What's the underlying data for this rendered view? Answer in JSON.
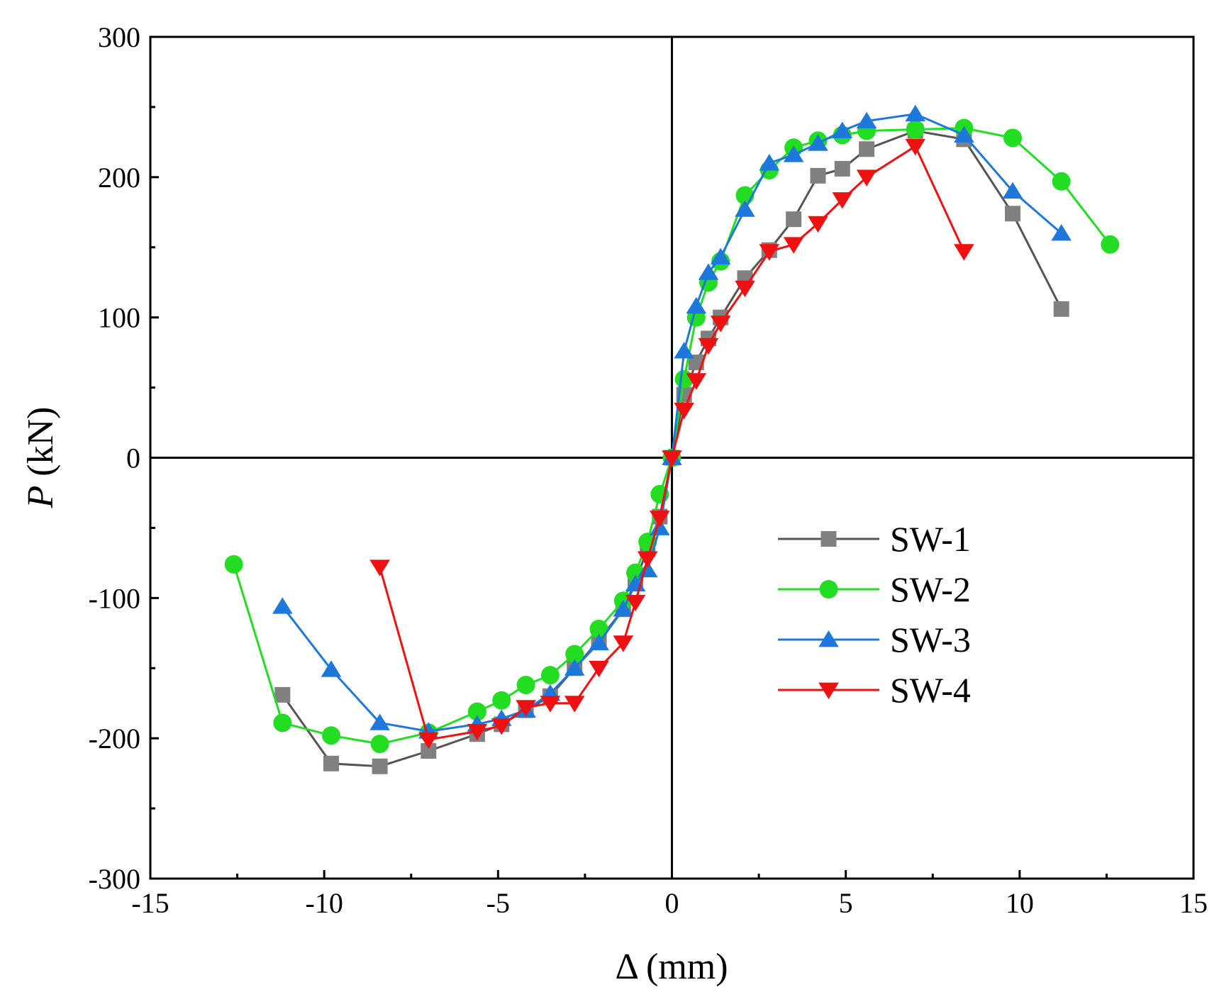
{
  "chart_data": {
    "type": "line",
    "title": "",
    "xlabel": "Δ (mm)",
    "ylabel_italic": "P",
    "ylabel_unit": " (kN)",
    "xlim": [
      -15,
      15
    ],
    "ylim": [
      -300,
      300
    ],
    "x_ticks": [
      -15,
      -10,
      -5,
      0,
      5,
      10,
      15
    ],
    "y_ticks": [
      -300,
      -200,
      -100,
      0,
      100,
      200,
      300
    ],
    "x_tick_labels": [
      "-15",
      "-10",
      "-5",
      "0",
      "5",
      "10",
      "15"
    ],
    "y_tick_labels": [
      "-300",
      "-200",
      "-100",
      "0",
      "100",
      "200",
      "300"
    ],
    "grid": false,
    "zero_lines": true,
    "legend_position": "right-center",
    "series": [
      {
        "name": "SW-1",
        "color": "#808080",
        "line_color": "#555555",
        "marker": "square",
        "points": [
          [
            -11.2,
            -169
          ],
          [
            -9.8,
            -218
          ],
          [
            -8.4,
            -220
          ],
          [
            -7.0,
            -209
          ],
          [
            -5.6,
            -197
          ],
          [
            -4.9,
            -190
          ],
          [
            -4.2,
            -180
          ],
          [
            -3.5,
            -170
          ],
          [
            -2.8,
            -150
          ],
          [
            -2.1,
            -130
          ],
          [
            -1.4,
            -108
          ],
          [
            -1.05,
            -88
          ],
          [
            -0.7,
            -65
          ],
          [
            -0.35,
            -42
          ],
          [
            0,
            0
          ],
          [
            0.35,
            45
          ],
          [
            0.7,
            68
          ],
          [
            1.05,
            85
          ],
          [
            1.4,
            100
          ],
          [
            2.1,
            128
          ],
          [
            2.8,
            148
          ],
          [
            3.5,
            170
          ],
          [
            4.2,
            201
          ],
          [
            4.9,
            206
          ],
          [
            5.6,
            220
          ],
          [
            7.0,
            233
          ],
          [
            8.4,
            227
          ],
          [
            9.8,
            174
          ],
          [
            11.2,
            106
          ]
        ]
      },
      {
        "name": "SW-2",
        "color": "#22DD22",
        "line_color": "#22DD22",
        "marker": "circle",
        "points": [
          [
            -12.6,
            -76
          ],
          [
            -11.2,
            -189
          ],
          [
            -9.8,
            -198
          ],
          [
            -8.4,
            -204
          ],
          [
            -7.0,
            -196
          ],
          [
            -5.6,
            -181
          ],
          [
            -4.9,
            -173
          ],
          [
            -4.2,
            -162
          ],
          [
            -3.5,
            -155
          ],
          [
            -2.8,
            -140
          ],
          [
            -2.1,
            -122
          ],
          [
            -1.4,
            -102
          ],
          [
            -1.05,
            -82
          ],
          [
            -0.7,
            -60
          ],
          [
            -0.35,
            -26
          ],
          [
            0,
            0
          ],
          [
            0.35,
            56
          ],
          [
            0.7,
            100
          ],
          [
            1.05,
            125
          ],
          [
            1.4,
            140
          ],
          [
            2.1,
            187
          ],
          [
            2.8,
            205
          ],
          [
            3.5,
            221
          ],
          [
            4.2,
            226
          ],
          [
            4.9,
            230
          ],
          [
            5.6,
            233
          ],
          [
            7.0,
            234
          ],
          [
            8.4,
            235
          ],
          [
            9.8,
            228
          ],
          [
            11.2,
            197
          ],
          [
            12.6,
            152
          ]
        ]
      },
      {
        "name": "SW-3",
        "color": "#1E78DC",
        "line_color": "#1E78DC",
        "marker": "triangle-up",
        "points": [
          [
            -11.2,
            -106
          ],
          [
            -9.8,
            -151
          ],
          [
            -8.4,
            -189
          ],
          [
            -7.0,
            -195
          ],
          [
            -5.6,
            -190
          ],
          [
            -4.9,
            -186
          ],
          [
            -4.2,
            -180
          ],
          [
            -3.5,
            -168
          ],
          [
            -2.8,
            -150
          ],
          [
            -2.1,
            -132
          ],
          [
            -1.4,
            -108
          ],
          [
            -1.05,
            -90
          ],
          [
            -0.7,
            -80
          ],
          [
            -0.35,
            -50
          ],
          [
            0,
            0
          ],
          [
            0.35,
            76
          ],
          [
            0.7,
            108
          ],
          [
            1.05,
            132
          ],
          [
            1.4,
            143
          ],
          [
            2.1,
            177
          ],
          [
            2.8,
            210
          ],
          [
            3.5,
            216
          ],
          [
            4.2,
            224
          ],
          [
            4.9,
            233
          ],
          [
            5.6,
            240
          ],
          [
            7.0,
            245
          ],
          [
            8.4,
            230
          ],
          [
            9.8,
            190
          ],
          [
            11.2,
            160
          ]
        ]
      },
      {
        "name": "SW-4",
        "color": "#EE1111",
        "line_color": "#EE1111",
        "marker": "triangle-down",
        "points": [
          [
            -8.4,
            -78
          ],
          [
            -7.0,
            -201
          ],
          [
            -5.6,
            -195
          ],
          [
            -4.9,
            -191
          ],
          [
            -4.2,
            -178
          ],
          [
            -3.5,
            -175
          ],
          [
            -2.8,
            -175
          ],
          [
            -2.1,
            -150
          ],
          [
            -1.4,
            -132
          ],
          [
            -1.05,
            -103
          ],
          [
            -0.7,
            -72
          ],
          [
            -0.35,
            -43
          ],
          [
            0,
            0
          ],
          [
            0.35,
            34
          ],
          [
            0.7,
            55
          ],
          [
            1.05,
            80
          ],
          [
            1.4,
            96
          ],
          [
            2.1,
            121
          ],
          [
            2.8,
            147
          ],
          [
            3.5,
            152
          ],
          [
            4.2,
            167
          ],
          [
            4.9,
            184
          ],
          [
            5.6,
            200
          ],
          [
            7.0,
            222
          ],
          [
            8.4,
            147
          ]
        ]
      }
    ]
  }
}
